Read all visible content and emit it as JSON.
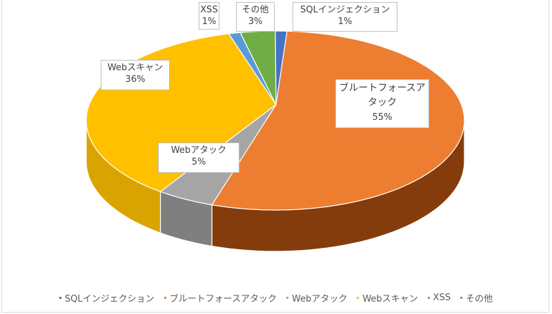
{
  "chart_data": {
    "type": "pie",
    "style": "3d-pie",
    "title": "",
    "start_angle_deg": 0,
    "direction": "clockwise",
    "categories": [
      "SQLインジェクション",
      "ブルートフォースアタック",
      "Webアタック",
      "Webスキャン",
      "XSS",
      "その他"
    ],
    "values": [
      1,
      55,
      5,
      36,
      1,
      3
    ],
    "unit": "%",
    "colors": [
      "#4472C4",
      "#ED7D31",
      "#A5A5A5",
      "#FFC000",
      "#5B9BD5",
      "#70AD47"
    ],
    "side_colors": [
      "#2F5597",
      "#843C0C",
      "#7F7F7F",
      "#D9A400",
      "#2E75B6",
      "#548235"
    ],
    "data_labels": [
      {
        "name": "SQLインジェクション",
        "value": "1%"
      },
      {
        "name": "ブルートフォースアタック",
        "value": "55%"
      },
      {
        "name": "Webアタック",
        "value": "5%"
      },
      {
        "name": "Webスキャン",
        "value": "36%"
      },
      {
        "name": "XSS",
        "value": "1%"
      },
      {
        "name": "その他",
        "value": "3%"
      }
    ],
    "legend_position": "bottom"
  },
  "labels": {
    "sql": {
      "name": "SQLインジェクション",
      "value": "1%"
    },
    "brute": {
      "name1": "ブルートフォースア",
      "name2": "タック",
      "value": "55%"
    },
    "webattack": {
      "name": "Webアタック",
      "value": "5%"
    },
    "webscan": {
      "name": "Webスキャン",
      "value": "36%"
    },
    "xss": {
      "name": "XSS",
      "value": "1%"
    },
    "other": {
      "name": "その他",
      "value": "3%"
    }
  },
  "legend": {
    "items": [
      {
        "label": "SQLインジェクション",
        "color": "#4472C4"
      },
      {
        "label": "ブルートフォースアタック",
        "color": "#ED7D31"
      },
      {
        "label": "Webアタック",
        "color": "#A5A5A5"
      },
      {
        "label": "Webスキャン",
        "color": "#FFC000"
      },
      {
        "label": "XSS",
        "color": "#5B9BD5"
      },
      {
        "label": "その他",
        "color": "#70AD47"
      }
    ]
  }
}
